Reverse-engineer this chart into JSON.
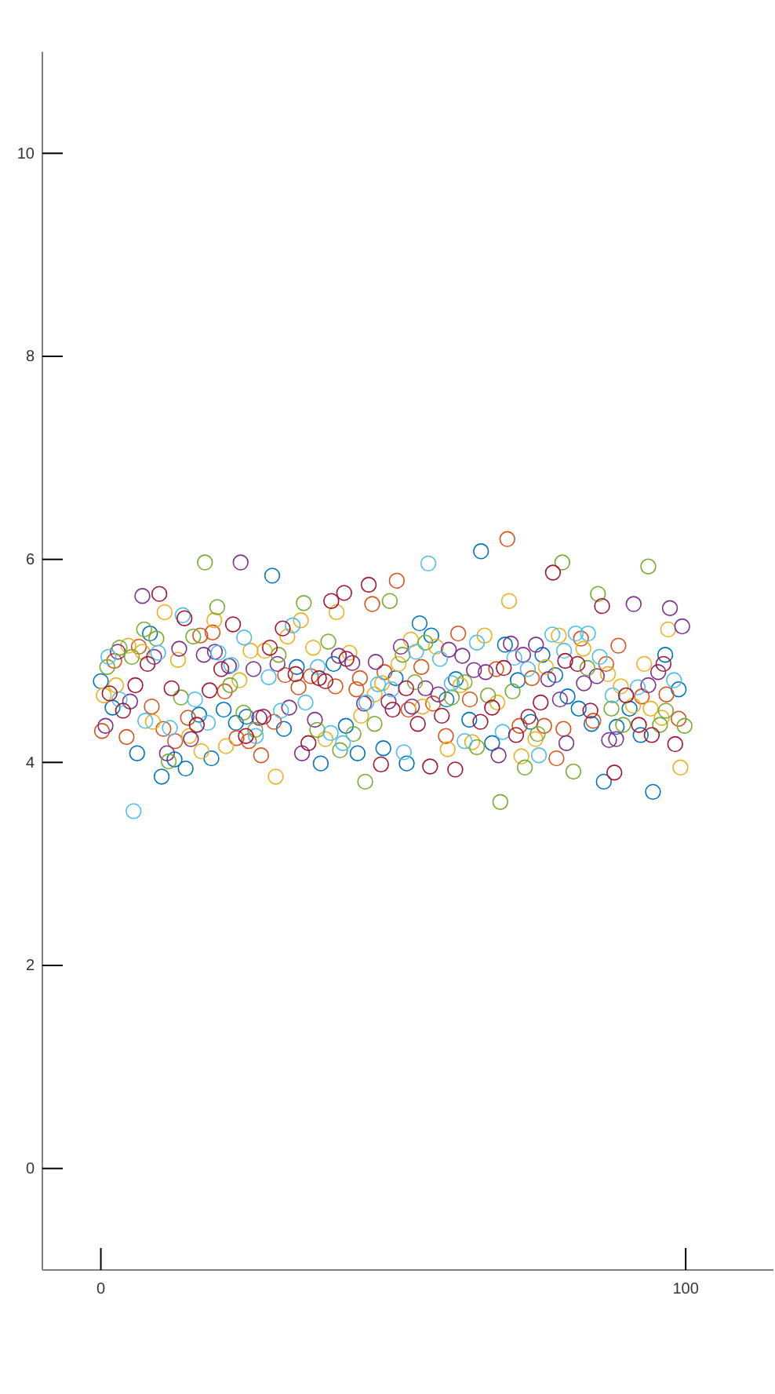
{
  "chart_data": {
    "type": "scatter",
    "marker": "circle",
    "xlim": [
      -10,
      115
    ],
    "ylim": [
      -1,
      11
    ],
    "xticks": [
      0,
      100
    ],
    "yticks": [
      0,
      2,
      4,
      6,
      8,
      10
    ],
    "series": [
      {
        "color": "#0072bd",
        "x": [
          0,
          2.0,
          6.2,
          8.4,
          10.4,
          12.6,
          14.5,
          16.8,
          18.9,
          21.0,
          23.1,
          24.9,
          29.3,
          31.3,
          33.5,
          37.6,
          39.8,
          41.9,
          43.9,
          48.3,
          50.4,
          52.3,
          54.5,
          56.5,
          59.1,
          60.7,
          63.0,
          65.0,
          66.9,
          69.1,
          71.3,
          73.5,
          75.5,
          77.7,
          79.8,
          81.7,
          83.9,
          86.0,
          88.2,
          90.4,
          92.3,
          94.4,
          96.5,
          98.8
        ],
        "values": [
          4.8,
          4.54,
          4.09,
          5.27,
          3.86,
          4.03,
          3.94,
          4.47,
          4.04,
          4.52,
          4.39,
          4.45,
          5.84,
          4.33,
          4.94,
          3.99,
          4.97,
          4.36,
          4.09,
          4.14,
          4.83,
          3.99,
          5.37,
          5.25,
          4.62,
          4.82,
          4.42,
          6.08,
          4.19,
          5.16,
          4.81,
          4.4,
          5.06,
          4.86,
          4.65,
          4.53,
          4.38,
          3.81,
          4.35,
          4.53,
          4.27,
          3.71,
          5.06,
          4.72
        ]
      },
      {
        "color": "#d95319",
        "x": [
          0.2,
          2.3,
          4.4,
          6.5,
          8.7,
          10.7,
          12.7,
          14.9,
          17.0,
          19.1,
          21.2,
          23.2,
          25.3,
          27.4,
          29.6,
          31.5,
          33.8,
          35.9,
          40.1,
          43.7,
          44.3,
          46.4,
          48.5,
          50.6,
          52.6,
          54.8,
          56.8,
          59.0,
          61.1,
          63.1,
          67.6,
          69.5,
          71.6,
          73.7,
          75.8,
          77.9,
          79.1,
          82.1,
          84.2,
          86.4,
          88.5,
          92.5,
          96.7,
          98.8
        ],
        "values": [
          4.31,
          5.0,
          4.25,
          5.14,
          4.55,
          4.33,
          4.21,
          4.44,
          5.25,
          5.28,
          4.7,
          4.24,
          4.21,
          4.07,
          4.4,
          4.86,
          4.74,
          4.85,
          4.75,
          4.72,
          4.83,
          5.56,
          4.89,
          5.79,
          4.52,
          4.94,
          4.58,
          4.26,
          5.27,
          4.62,
          4.92,
          6.2,
          4.36,
          4.83,
          4.36,
          4.04,
          4.33,
          5.22,
          4.41,
          4.97,
          5.15,
          4.65,
          4.67,
          4.43
        ]
      },
      {
        "color": "#edb120",
        "x": [
          0.5,
          2.6,
          4.7,
          7.1,
          8.9,
          10.9,
          13.2,
          15.1,
          17.2,
          19.4,
          21.4,
          23.7,
          25.6,
          28.0,
          29.9,
          31.9,
          34.2,
          36.3,
          38.4,
          40.3,
          42.5,
          44.5,
          46.8,
          48.1,
          50.9,
          53.0,
          55.0,
          57.3,
          59.3,
          61.5,
          63.5,
          65.6,
          67.8,
          69.8,
          71.9,
          74.3,
          76.1,
          78.3,
          82.5,
          86.7,
          88.9,
          91.0,
          92.9,
          94.0,
          95.9,
          97.0,
          99.1
        ],
        "values": [
          4.66,
          4.76,
          5.15,
          5.09,
          4.4,
          5.48,
          5.01,
          4.26,
          4.11,
          5.4,
          4.16,
          4.81,
          5.1,
          5.1,
          3.86,
          5.24,
          5.4,
          5.13,
          4.23,
          5.48,
          5.08,
          4.46,
          4.67,
          4.78,
          4.97,
          5.21,
          4.55,
          5.14,
          4.13,
          4.76,
          4.2,
          5.25,
          4.59,
          5.59,
          4.06,
          4.23,
          4.94,
          5.25,
          5.12,
          4.87,
          4.75,
          4.56,
          4.97,
          4.53,
          4.44,
          5.31,
          3.95
        ]
      },
      {
        "color": "#7e2f8e",
        "x": [
          0.8,
          2.9,
          5.0,
          7.1,
          9.1,
          11.3,
          13.4,
          15.4,
          17.6,
          19.5,
          21.9,
          23.9,
          26.1,
          27.1,
          30.2,
          32.2,
          34.4,
          36.6,
          40.7,
          43.0,
          45.0,
          47.0,
          49.2,
          51.3,
          53.2,
          55.5,
          57.7,
          59.5,
          61.8,
          63.8,
          65.8,
          68.0,
          70.1,
          72.2,
          74.4,
          76.5,
          78.5,
          79.6,
          82.6,
          84.8,
          86.9,
          88.1,
          91.1,
          93.6,
          95.3,
          97.3,
          99.4
        ],
        "values": [
          4.36,
          5.09,
          4.6,
          5.64,
          5.04,
          4.09,
          5.12,
          4.23,
          5.06,
          5.09,
          4.95,
          5.97,
          4.92,
          4.44,
          4.97,
          4.54,
          4.09,
          4.42,
          5.05,
          4.98,
          4.58,
          4.99,
          4.6,
          5.14,
          4.55,
          4.73,
          4.67,
          5.11,
          5.05,
          4.91,
          4.89,
          4.07,
          5.17,
          5.06,
          5.16,
          4.82,
          4.62,
          4.19,
          4.78,
          4.85,
          4.22,
          4.23,
          5.56,
          4.76,
          4.89,
          5.52,
          5.34
        ]
      },
      {
        "color": "#77ac30",
        "x": [
          1.1,
          3.2,
          5.3,
          7.4,
          9.5,
          11.6,
          13.7,
          15.8,
          17.8,
          19.9,
          22.1,
          24.4,
          26.4,
          30.4,
          34.7,
          37.0,
          38.9,
          40.9,
          43.2,
          45.2,
          46.8,
          49.4,
          51.6,
          53.7,
          55.5,
          60.0,
          62.2,
          64.3,
          66.2,
          68.3,
          70.4,
          72.5,
          74.7,
          78.9,
          80.8,
          83.2,
          85.0,
          87.3,
          89.3,
          93.6,
          95.6,
          96.6,
          99.8
        ],
        "values": [
          4.94,
          5.13,
          5.04,
          5.31,
          5.22,
          4.01,
          4.64,
          5.24,
          5.97,
          5.53,
          4.76,
          4.49,
          4.32,
          5.06,
          5.57,
          4.32,
          5.19,
          4.12,
          4.28,
          3.81,
          4.38,
          5.59,
          5.06,
          4.79,
          5.18,
          4.64,
          4.79,
          4.15,
          4.66,
          3.61,
          4.7,
          3.95,
          4.28,
          5.97,
          3.91,
          4.93,
          5.66,
          4.53,
          4.37,
          5.93,
          4.37,
          4.51,
          4.36
        ]
      },
      {
        "color": "#4dbeee",
        "x": [
          1.3,
          3.2,
          5.6,
          7.6,
          9.8,
          11.8,
          14.0,
          16.1,
          18.3,
          20.1,
          22.3,
          24.5,
          26.5,
          28.7,
          30.8,
          32.8,
          35.0,
          37.1,
          39.3,
          41.4,
          45.4,
          47.4,
          49.7,
          51.8,
          53.9,
          56.0,
          58.0,
          60.0,
          62.2,
          64.3,
          68.7,
          70.7,
          73.0,
          74.9,
          77.2,
          79.2,
          81.2,
          83.3,
          85.3,
          87.5,
          91.8,
          98.0
        ],
        "values": [
          5.04,
          4.62,
          3.52,
          4.41,
          5.08,
          4.34,
          5.45,
          4.62,
          4.39,
          5.08,
          4.96,
          5.23,
          4.26,
          4.84,
          4.51,
          5.35,
          4.59,
          4.94,
          4.29,
          4.19,
          4.59,
          4.77,
          4.72,
          4.1,
          5.09,
          5.96,
          5.02,
          4.78,
          4.21,
          5.18,
          4.3,
          5.03,
          4.92,
          4.07,
          5.26,
          5.1,
          5.27,
          5.27,
          5.04,
          4.66,
          4.74,
          4.81
        ]
      },
      {
        "color": "#a2142f",
        "x": [
          1.5,
          3.8,
          5.9,
          8.0,
          10.0,
          12.1,
          14.3,
          16.4,
          18.6,
          20.6,
          22.6,
          24.8,
          27.8,
          28.9,
          31.1,
          33.3,
          35.5,
          37.3,
          38.4,
          39.4,
          41.6,
          42.0,
          45.8,
          47.9,
          49.9,
          52.2,
          54.2,
          56.3,
          58.3,
          60.6,
          64.9,
          66.9,
          68.9,
          71.0,
          73.1,
          75.2,
          77.3,
          79.4,
          81.5,
          83.7,
          85.7,
          87.8,
          89.8,
          92.0,
          94.2,
          96.2,
          98.2
        ],
        "values": [
          4.68,
          4.51,
          4.76,
          4.97,
          5.66,
          4.73,
          5.42,
          4.37,
          4.71,
          4.92,
          5.36,
          4.26,
          4.45,
          5.13,
          5.32,
          4.87,
          4.19,
          4.83,
          4.8,
          5.59,
          5.67,
          5.02,
          5.75,
          3.98,
          4.52,
          4.73,
          4.38,
          3.96,
          4.46,
          3.93,
          4.4,
          4.54,
          4.93,
          4.27,
          4.45,
          4.59,
          5.87,
          5.0,
          4.97,
          4.51,
          5.54,
          3.9,
          4.66,
          4.37,
          4.27,
          4.97,
          4.18
        ]
      }
    ]
  }
}
